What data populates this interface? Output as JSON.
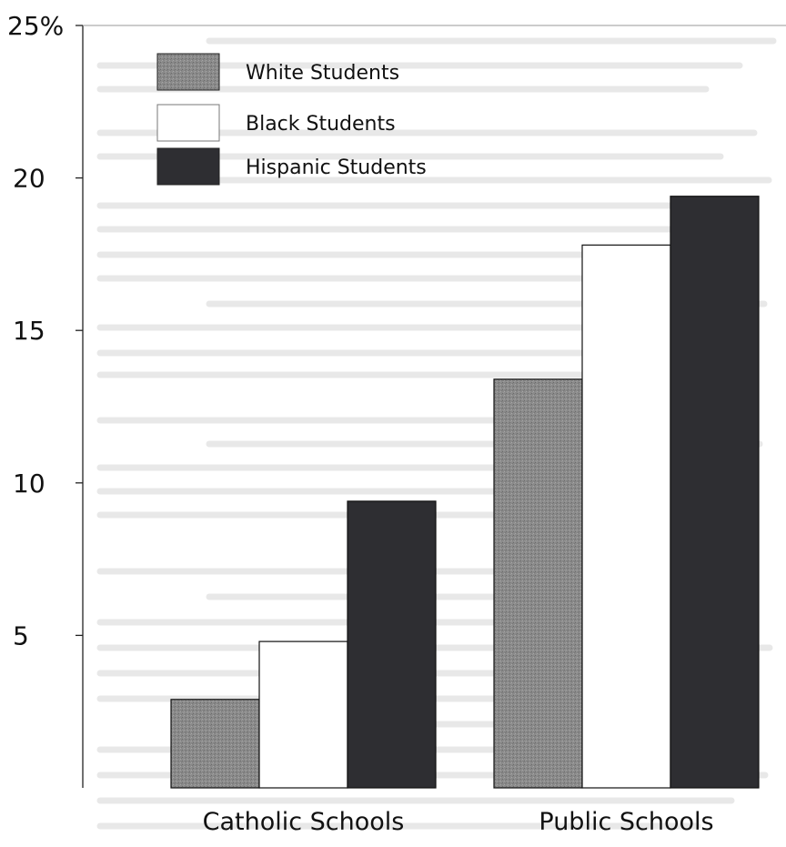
{
  "chart_data": {
    "type": "bar",
    "categories": [
      "Catholic Schools",
      "Public Schools"
    ],
    "series": [
      {
        "name": "White Students",
        "values": [
          2.9,
          13.4
        ],
        "color": "#8a8a8a",
        "pattern": "stipple"
      },
      {
        "name": "Black Students",
        "values": [
          4.8,
          17.8
        ],
        "color": "#ffffff"
      },
      {
        "name": "Hispanic Students",
        "values": [
          9.4,
          19.4
        ],
        "color": "#2e2e32"
      }
    ],
    "yticks": [
      {
        "value": 5,
        "label": "5"
      },
      {
        "value": 10,
        "label": "10"
      },
      {
        "value": 15,
        "label": "15"
      },
      {
        "value": 20,
        "label": "20"
      },
      {
        "value": 25,
        "label": "25%"
      }
    ],
    "ylim": [
      0,
      25
    ],
    "title": "",
    "xlabel": "",
    "ylabel": "",
    "legend": "top-left",
    "grid": false
  }
}
